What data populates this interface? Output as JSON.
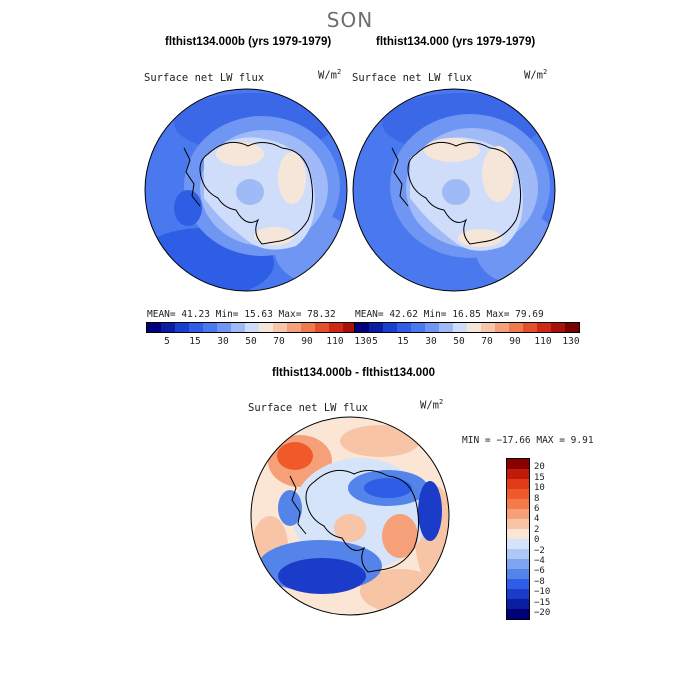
{
  "season": "SON",
  "panels": [
    {
      "case_title": "flthist134.000b (yrs 1979-1979)",
      "plot_title": "Surface net LW flux",
      "units": "W/m",
      "units_exp": "2",
      "stats": "MEAN=  41.23  Min=  15.63  Max=  78.32"
    },
    {
      "case_title": "flthist134.000 (yrs 1979-1979)",
      "plot_title": "Surface net LW flux",
      "units": "W/m",
      "units_exp": "2",
      "stats": "MEAN=  42.62  Min=  16.85  Max=  79.69"
    }
  ],
  "diff": {
    "title": "flthist134.000b - flthist134.000",
    "plot_title": "Surface net LW flux",
    "units": "W/m",
    "units_exp": "2",
    "stats": "MIN = −17.66 MAX =    9.91"
  },
  "colorbar_abs": {
    "labels": [
      "5",
      "15",
      "30",
      "50",
      "70",
      "90",
      "110",
      "130"
    ],
    "colors": [
      "#00007a",
      "#0a1fa0",
      "#1a3fd0",
      "#2e5ee6",
      "#4a78ee",
      "#6e96f2",
      "#9fbaf6",
      "#cfdcfa",
      "#f6e6da",
      "#f7c6aa",
      "#f4a07a",
      "#ee7a50",
      "#e4502c",
      "#cc2a14",
      "#a8120a",
      "#780000"
    ]
  },
  "colorbar_diff": {
    "labels": [
      "20",
      "15",
      "10",
      "8",
      "6",
      "4",
      "2",
      "0",
      "−2",
      "−4",
      "−6",
      "−8",
      "−10",
      "−15",
      "−20"
    ],
    "colors": [
      "#8a0000",
      "#c01a0a",
      "#e03a1a",
      "#f05a2a",
      "#f47a4a",
      "#f6a07a",
      "#f8c4a6",
      "#fbe6d6",
      "#d6e4fa",
      "#aec8f6",
      "#7ea6f0",
      "#5484ea",
      "#2e5ee6",
      "#1a3cc8",
      "#0a1fa0",
      "#00007a"
    ]
  }
}
